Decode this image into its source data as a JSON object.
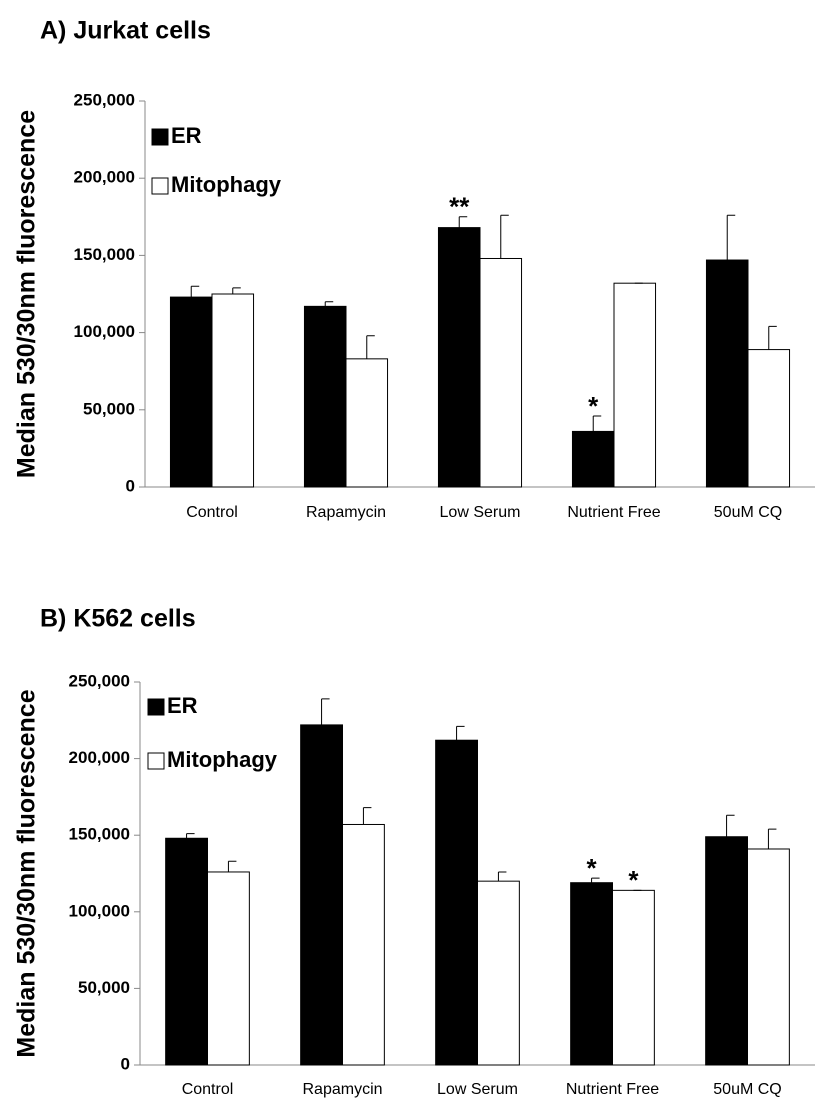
{
  "chart_data": [
    {
      "type": "bar",
      "title": "A) Jurkat cells",
      "y_label": "Median 530/30nm fluorescence",
      "categories": [
        "Control",
        "Rapamycin",
        "Low Serum",
        "Nutrient Free",
        "50uM CQ"
      ],
      "series": [
        {
          "name": "ER",
          "color": "#000000",
          "values": [
            123000,
            117000,
            168000,
            36000,
            147000
          ],
          "errors": [
            7000,
            3000,
            7000,
            10000,
            29000
          ],
          "annotations": [
            null,
            null,
            "**",
            "*",
            null
          ]
        },
        {
          "name": "Mitophagy",
          "color": "#ffffff",
          "values": [
            125000,
            83000,
            148000,
            132000,
            89000
          ],
          "errors": [
            4000,
            15000,
            28000,
            0,
            15000
          ],
          "annotations": [
            null,
            null,
            null,
            null,
            null
          ]
        }
      ],
      "ylim": [
        0,
        250000
      ],
      "yticks": [
        0,
        {
          "value": 50000,
          "label": "50,000"
        },
        {
          "value": 100000,
          "label": "100,000"
        },
        {
          "value": 150000,
          "label": "150,000"
        },
        {
          "value": 200000,
          "label": "200,000"
        },
        {
          "value": 250000,
          "label": "250,000"
        }
      ],
      "legend": "upper left",
      "grid": false
    },
    {
      "type": "bar",
      "title": "B) K562 cells",
      "y_label": "Median 530/30nm fluorescence",
      "categories": [
        "Control",
        "Rapamycin",
        "Low Serum",
        "Nutrient Free",
        "50uM CQ"
      ],
      "series": [
        {
          "name": "ER",
          "color": "#000000",
          "values": [
            148000,
            222000,
            212000,
            119000,
            149000
          ],
          "errors": [
            3000,
            17000,
            9000,
            3000,
            14000
          ],
          "annotations": [
            null,
            null,
            null,
            "*",
            null
          ]
        },
        {
          "name": "Mitophagy",
          "color": "#ffffff",
          "values": [
            126000,
            157000,
            120000,
            114000,
            141000
          ],
          "errors": [
            7000,
            11000,
            6000,
            0,
            13000
          ],
          "annotations": [
            null,
            null,
            null,
            "*",
            null
          ]
        }
      ],
      "ylim": [
        0,
        250000
      ],
      "yticks": [
        0,
        {
          "value": 50000,
          "label": "50,000"
        },
        {
          "value": 100000,
          "label": "100,000"
        },
        {
          "value": 150000,
          "label": "150,000"
        },
        {
          "value": 200000,
          "label": "200,000"
        },
        {
          "value": 250000,
          "label": "250,000"
        }
      ],
      "legend": "upper left",
      "grid": false
    }
  ]
}
